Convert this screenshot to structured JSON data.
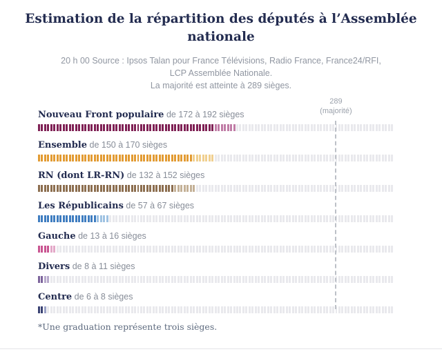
{
  "title": "Estimation de la répartition des députés à l’Assemblée nationale",
  "source": {
    "lines": [
      "20 h 00 Source : Ipsos Talan pour France Télévisions, Radio France, France24/RFI,",
      "LCP Assemblée Nationale.",
      "La majorité est atteinte à 289 sièges."
    ]
  },
  "majority_marker": {
    "value": "289",
    "caption": "(majorité)"
  },
  "footnote": "*Une graduation représente trois sièges.",
  "colors": {
    "title": "#232c50",
    "muted": "#9096a1",
    "track": "#e9e9ed",
    "marker": "#bcc0c7"
  },
  "chart_data": {
    "type": "bar",
    "title": "Estimation de la répartition des députés à l’Assemblée nationale",
    "unit_per_tick_seats": 3,
    "axis_max_seats": 345,
    "majority_seats": 289,
    "majority_label": "289 (majorité)",
    "footnote": "*Une graduation représente trois sièges.",
    "series": [
      {
        "name": "Nouveau Front populaire",
        "range_text": "de 172 à 192 sièges",
        "min_seats": 172,
        "max_seats": 192,
        "color": "#7f2155",
        "color_light": "#c07ca6"
      },
      {
        "name": "Ensemble",
        "range_text": "de 150 à 170 sièges",
        "min_seats": 150,
        "max_seats": 170,
        "color": "#e29b33",
        "color_light": "#f0cf8f"
      },
      {
        "name": "RN (dont LR-RN)",
        "range_text": "de 132 à 152 sièges",
        "min_seats": 132,
        "max_seats": 152,
        "color": "#8c6e4f",
        "color_light": "#c3b096"
      },
      {
        "name": "Les Républicains",
        "range_text": "de 57 à 67 sièges",
        "min_seats": 57,
        "max_seats": 67,
        "color": "#3f7dc0",
        "color_light": "#9fc2e2"
      },
      {
        "name": "Gauche",
        "range_text": "de 13 à 16 sièges",
        "min_seats": 13,
        "max_seats": 16,
        "color": "#c95591",
        "color_light": "#e3a8c8"
      },
      {
        "name": "Divers",
        "range_text": "de 8 à 11 sièges",
        "min_seats": 8,
        "max_seats": 11,
        "color": "#7d649c",
        "color_light": "#b7a9cb"
      },
      {
        "name": "Centre",
        "range_text": "de 6 à 8 sièges",
        "min_seats": 6,
        "max_seats": 8,
        "color": "#3a4273",
        "color_light": "#9aa1c5"
      }
    ]
  }
}
